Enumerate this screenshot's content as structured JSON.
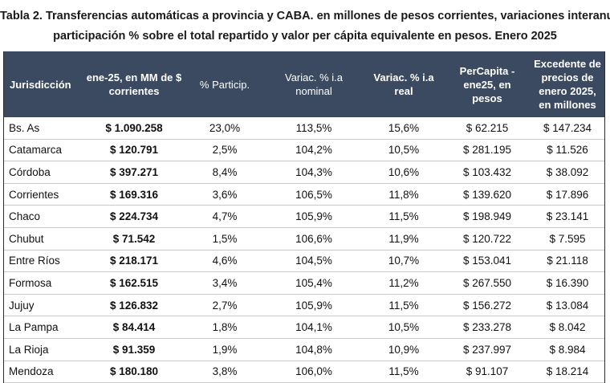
{
  "title": {
    "line1": "Tabla 2. Transferencias automáticas a provincia y CABA. en millones de pesos corrientes, variaciones interanuales,",
    "line2": "participación % sobre el total repartido y valor per cápita equivalente en pesos. Enero 2025"
  },
  "header": {
    "jurisdiccion": "Jurisdicción",
    "monto": "ene-25, en MM de $ corrientes",
    "particip": "% Particip.",
    "var_nominal": "Variac. % i.a nominal",
    "var_real": "Variac. % i.a real",
    "percapita": "PerCapita - ene25, en pesos",
    "excedente": "Excedente de precios de enero 2025, en millones"
  },
  "colors": {
    "header_bg": "#3b4a61",
    "header_text": "#ffffff",
    "row_border": "#c9c9c9"
  },
  "rows": [
    {
      "name": "Bs. As",
      "amount": "$ 1.090.258",
      "particip": "23,0%",
      "nominal": "113,5%",
      "real": "15,6%",
      "percapita": "$ 62.215",
      "excedente": "$ 147.234"
    },
    {
      "name": "Catamarca",
      "amount": "$ 120.791",
      "particip": "2,5%",
      "nominal": "104,2%",
      "real": "10,5%",
      "percapita": "$ 281.195",
      "excedente": "$ 11.526"
    },
    {
      "name": "Córdoba",
      "amount": "$ 397.271",
      "particip": "8,4%",
      "nominal": "104,3%",
      "real": "10,6%",
      "percapita": "$ 103.432",
      "excedente": "$ 38.092"
    },
    {
      "name": "Corrientes",
      "amount": "$ 169.316",
      "particip": "3,6%",
      "nominal": "106,5%",
      "real": "11,8%",
      "percapita": "$ 139.620",
      "excedente": "$ 17.896"
    },
    {
      "name": "Chaco",
      "amount": "$ 224.734",
      "particip": "4,7%",
      "nominal": "105,9%",
      "real": "11,5%",
      "percapita": "$ 198.949",
      "excedente": "$ 23.141"
    },
    {
      "name": "Chubut",
      "amount": "$ 71.542",
      "particip": "1,5%",
      "nominal": "106,6%",
      "real": "11,9%",
      "percapita": "$ 120.722",
      "excedente": "$ 7.595"
    },
    {
      "name": "Entre Ríos",
      "amount": "$ 218.171",
      "particip": "4,6%",
      "nominal": "104,5%",
      "real": "10,7%",
      "percapita": "$ 153.041",
      "excedente": "$ 21.118"
    },
    {
      "name": "Formosa",
      "amount": "$ 162.515",
      "particip": "3,4%",
      "nominal": "105,4%",
      "real": "11,2%",
      "percapita": "$ 267.550",
      "excedente": "$ 16.390"
    },
    {
      "name": "Jujuy",
      "amount": "$ 126.832",
      "particip": "2,7%",
      "nominal": "105,9%",
      "real": "11,5%",
      "percapita": "$ 156.272",
      "excedente": "$ 13.084"
    },
    {
      "name": "La Pampa",
      "amount": "$ 84.414",
      "particip": "1,8%",
      "nominal": "104,1%",
      "real": "10,5%",
      "percapita": "$ 233.278",
      "excedente": "$ 8.042"
    },
    {
      "name": "La Rioja",
      "amount": "$ 91.359",
      "particip": "1,9%",
      "nominal": "104,8%",
      "real": "10,9%",
      "percapita": "$ 237.997",
      "excedente": "$ 8.984"
    },
    {
      "name": "Mendoza",
      "amount": "$ 180.180",
      "particip": "3,8%",
      "nominal": "106,0%",
      "real": "11,5%",
      "percapita": "$ 91.107",
      "excedente": "$ 18.214"
    }
  ]
}
